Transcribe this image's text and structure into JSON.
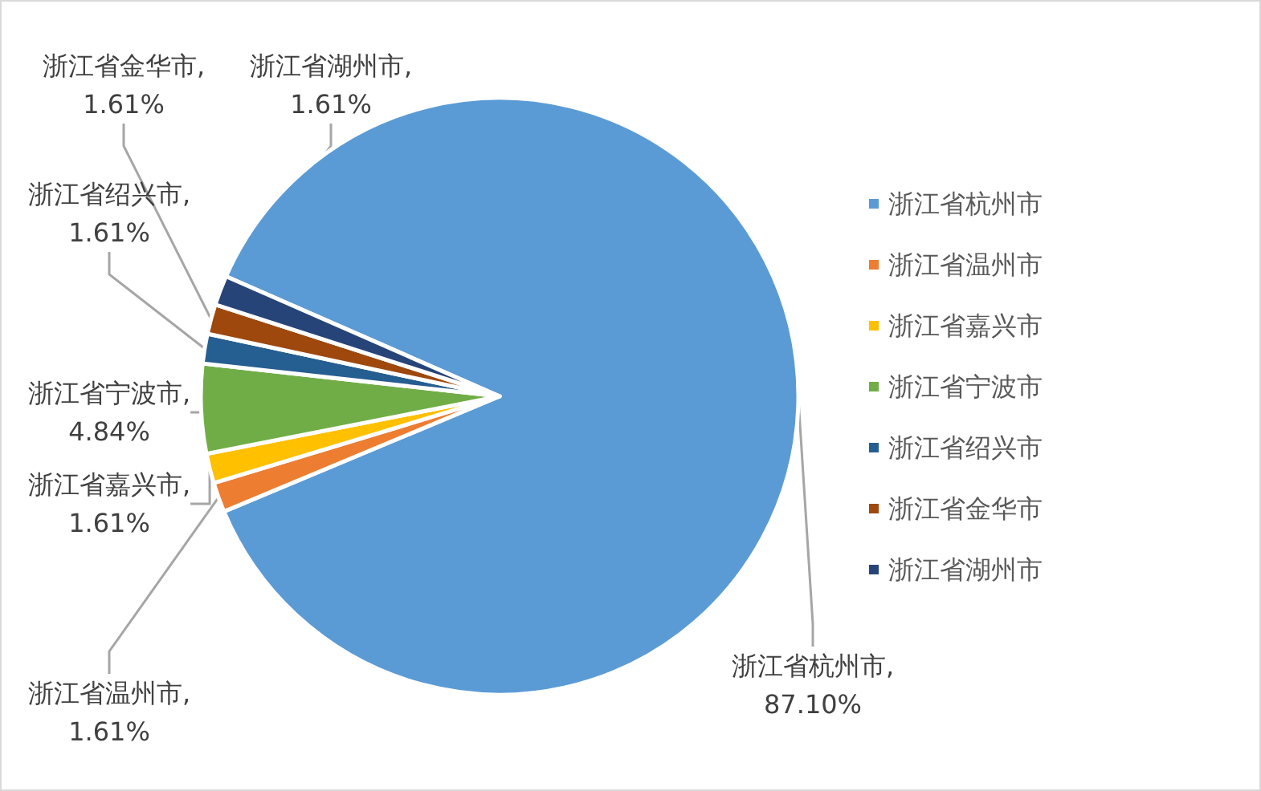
{
  "chart_data": {
    "type": "pie",
    "categories": [
      "浙江省杭州市",
      "浙江省温州市",
      "浙江省嘉兴市",
      "浙江省宁波市",
      "浙江省绍兴市",
      "浙江省金华市",
      "浙江省湖州市"
    ],
    "values": [
      87.1,
      1.61,
      1.61,
      4.84,
      1.61,
      1.61,
      1.61
    ],
    "colors": [
      "#5b9bd5",
      "#ed7d31",
      "#ffc000",
      "#70ad47",
      "#255e91",
      "#9e480e",
      "#264478"
    ],
    "value_labels": [
      "浙江省杭州市, 87.10%",
      "浙江省温州市, 1.61%",
      "浙江省嘉兴市, 1.61%",
      "浙江省宁波市, 4.84%",
      "浙江省绍兴市, 1.61%",
      "浙江省金华市, 1.61%",
      "浙江省湖州市, 1.61%"
    ],
    "legend": "right"
  }
}
